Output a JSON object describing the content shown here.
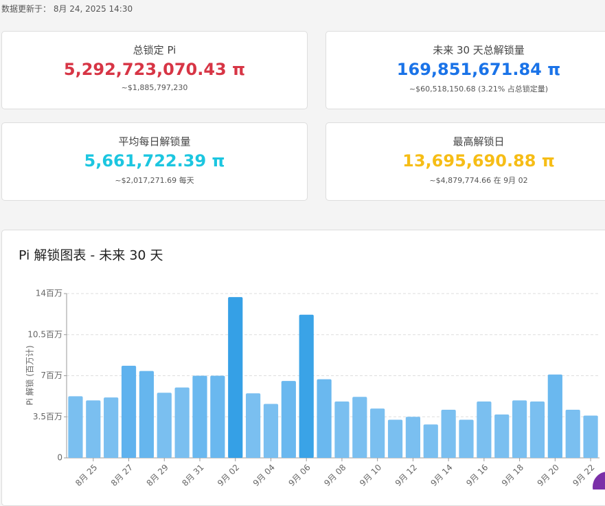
{
  "header": {
    "updated": "数据更新于： 8月 24, 2025 14:30"
  },
  "cards": [
    {
      "title": "总锁定 Pi",
      "value": "5,292,723,070.43 π",
      "sub": "~$1,885,797,230",
      "color": "#d73545"
    },
    {
      "title": "未来 30 天总解锁量",
      "value": "169,851,671.84 π",
      "sub": "~$60,518,150.68 (3.21% 占总锁定量)",
      "color": "#1a73e8"
    },
    {
      "title": "平均每日解锁量",
      "value": "5,661,722.39 π",
      "sub": "~$2,017,271.69 每天",
      "color": "#1cc6e0"
    },
    {
      "title": "最高解锁日",
      "value": "13,695,690.88 π",
      "sub": "~$4,879,774.66 在 9月 02",
      "color": "#f6bd16"
    }
  ],
  "chart_data": {
    "type": "bar",
    "title": "Pi 解锁图表 - 未来 30 天",
    "y_label": "Pi 解锁 (百万计)",
    "categories": [
      null,
      "8月 25",
      null,
      "8月 27",
      null,
      "8月 29",
      null,
      "8月 31",
      null,
      "9月 02",
      null,
      "9月 04",
      null,
      "9月 06",
      null,
      "9月 08",
      null,
      "9月 10",
      null,
      "9月 12",
      null,
      "9月 14",
      null,
      "9月 16",
      null,
      "9月 18",
      null,
      "9月 20",
      null,
      "9月 22"
    ],
    "values": [
      5.25,
      4.9,
      5.15,
      7.85,
      7.4,
      5.55,
      6.0,
      7.0,
      7.0,
      13.7,
      5.5,
      4.6,
      6.55,
      12.2,
      6.7,
      4.8,
      5.2,
      4.2,
      3.25,
      3.5,
      2.85,
      4.1,
      3.25,
      4.8,
      3.7,
      4.9,
      4.8,
      7.1,
      4.1,
      3.6
    ],
    "colors": [
      "#7abff0",
      "#7abff0",
      "#7abff0",
      "#5fb2ee",
      "#66b6ee",
      "#7abff0",
      "#7abff0",
      "#6ab8ef",
      "#6ab8ef",
      "#35a0e6",
      "#7abff0",
      "#7abff0",
      "#6ab8ef",
      "#3aa3e7",
      "#6ab8ef",
      "#7abff0",
      "#7abff0",
      "#7abff0",
      "#7abff0",
      "#7abff0",
      "#7abff0",
      "#7abff0",
      "#7abff0",
      "#7abff0",
      "#7abff0",
      "#7abff0",
      "#7abff0",
      "#6ab8ef",
      "#7abff0",
      "#7abff0"
    ],
    "ylim": [
      0,
      14
    ],
    "yticks": [
      0,
      {
        "value": 3.5,
        "label": "3.5百万"
      },
      {
        "value": 7,
        "label": "7百万"
      },
      {
        "value": 10.5,
        "label": "10.5百万"
      },
      {
        "value": 14,
        "label": "14百万"
      }
    ],
    "grid": true
  }
}
